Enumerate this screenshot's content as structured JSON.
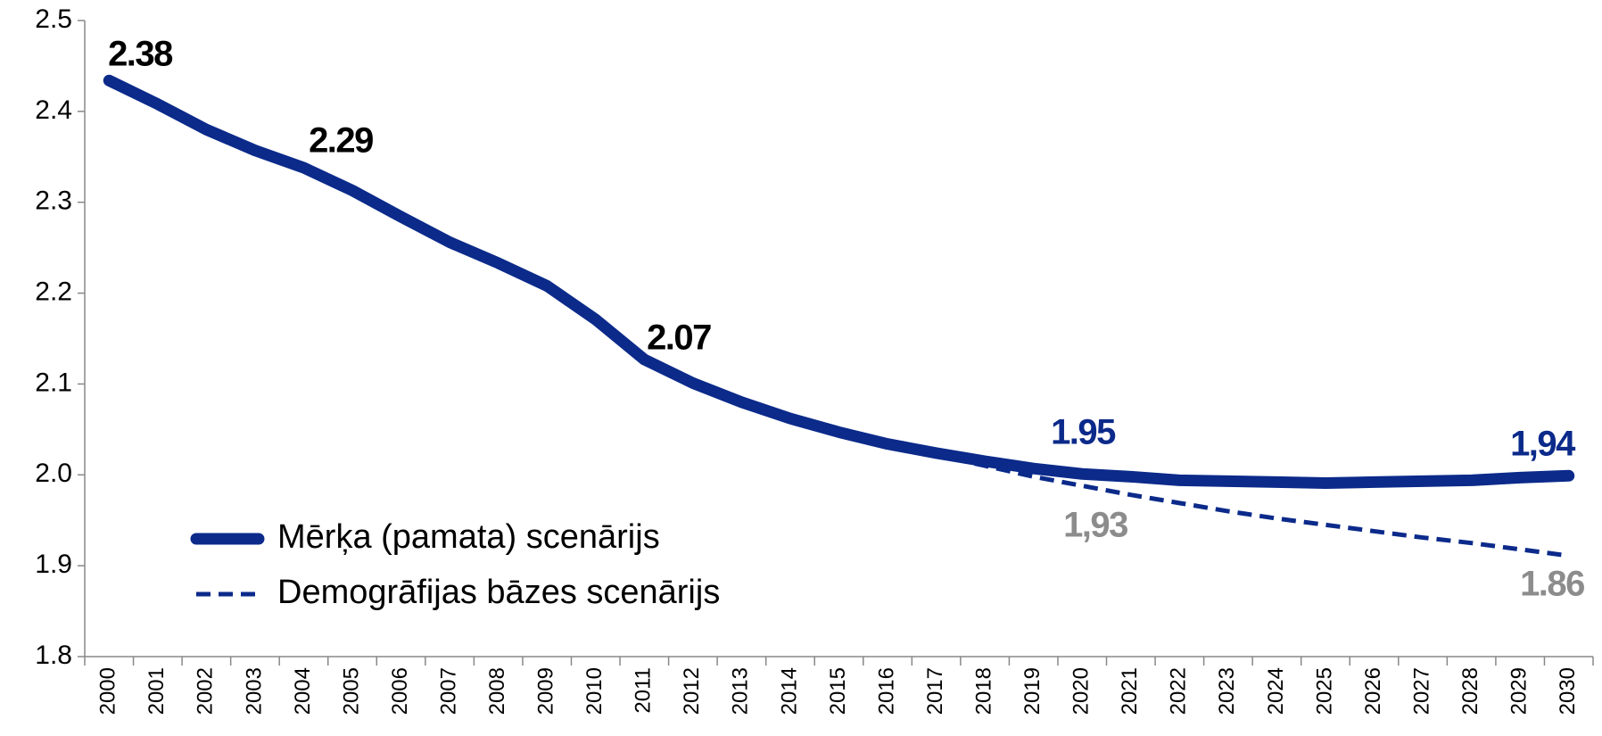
{
  "chart_data": {
    "type": "line",
    "categories": [
      "2000",
      "2001",
      "2002",
      "2003",
      "2004",
      "2005",
      "2006",
      "2007",
      "2008",
      "2009",
      "2010",
      "2011",
      "2012",
      "2013",
      "2014",
      "2015",
      "2016",
      "2017",
      "2018",
      "2019",
      "2020",
      "2021",
      "2022",
      "2023",
      "2024",
      "2025",
      "2026",
      "2027",
      "2028",
      "2029",
      "2030"
    ],
    "series": [
      {
        "name": "Mērķa (pamata) scenārijs",
        "color": "#0b2a8a",
        "dash": false,
        "values": [
          2.434,
          2.408,
          2.38,
          2.357,
          2.338,
          2.313,
          2.284,
          2.256,
          2.233,
          2.208,
          2.171,
          2.127,
          2.101,
          2.08,
          2.062,
          2.047,
          2.034,
          2.024,
          2.015,
          2.007,
          2.001,
          1.998,
          1.994,
          1.993,
          1.992,
          1.991,
          1.992,
          1.993,
          1.994,
          1.997,
          1.999
        ]
      },
      {
        "name": "Demogrāfijas bāzes scenārijs",
        "color": "#0b2a8a",
        "dash": true,
        "values": [
          null,
          null,
          null,
          null,
          null,
          null,
          null,
          null,
          null,
          null,
          null,
          null,
          null,
          null,
          null,
          null,
          2.034,
          2.022,
          2.01,
          1.998,
          1.988,
          1.978,
          1.969,
          1.96,
          1.952,
          1.945,
          1.938,
          1.931,
          1.925,
          1.918,
          1.911
        ]
      }
    ],
    "annotations": [
      {
        "text": "2.38",
        "color": "#000000"
      },
      {
        "text": "2.29",
        "color": "#000000"
      },
      {
        "text": "2.07",
        "color": "#000000"
      },
      {
        "text": "1.95",
        "color": "#0b2a8a"
      },
      {
        "text": "1,94",
        "color": "#0b2a8a"
      },
      {
        "text": "1,93",
        "color": "#8c8c8c"
      },
      {
        "text": "1.86",
        "color": "#8c8c8c"
      }
    ],
    "ylim": [
      1.8,
      2.5
    ],
    "yticks": [
      1.8,
      1.9,
      {
        "value": 2,
        "label": "2.0"
      },
      2.1,
      2.2,
      2.3,
      2.4,
      2.5
    ],
    "grid": false,
    "legend": "lower left"
  }
}
